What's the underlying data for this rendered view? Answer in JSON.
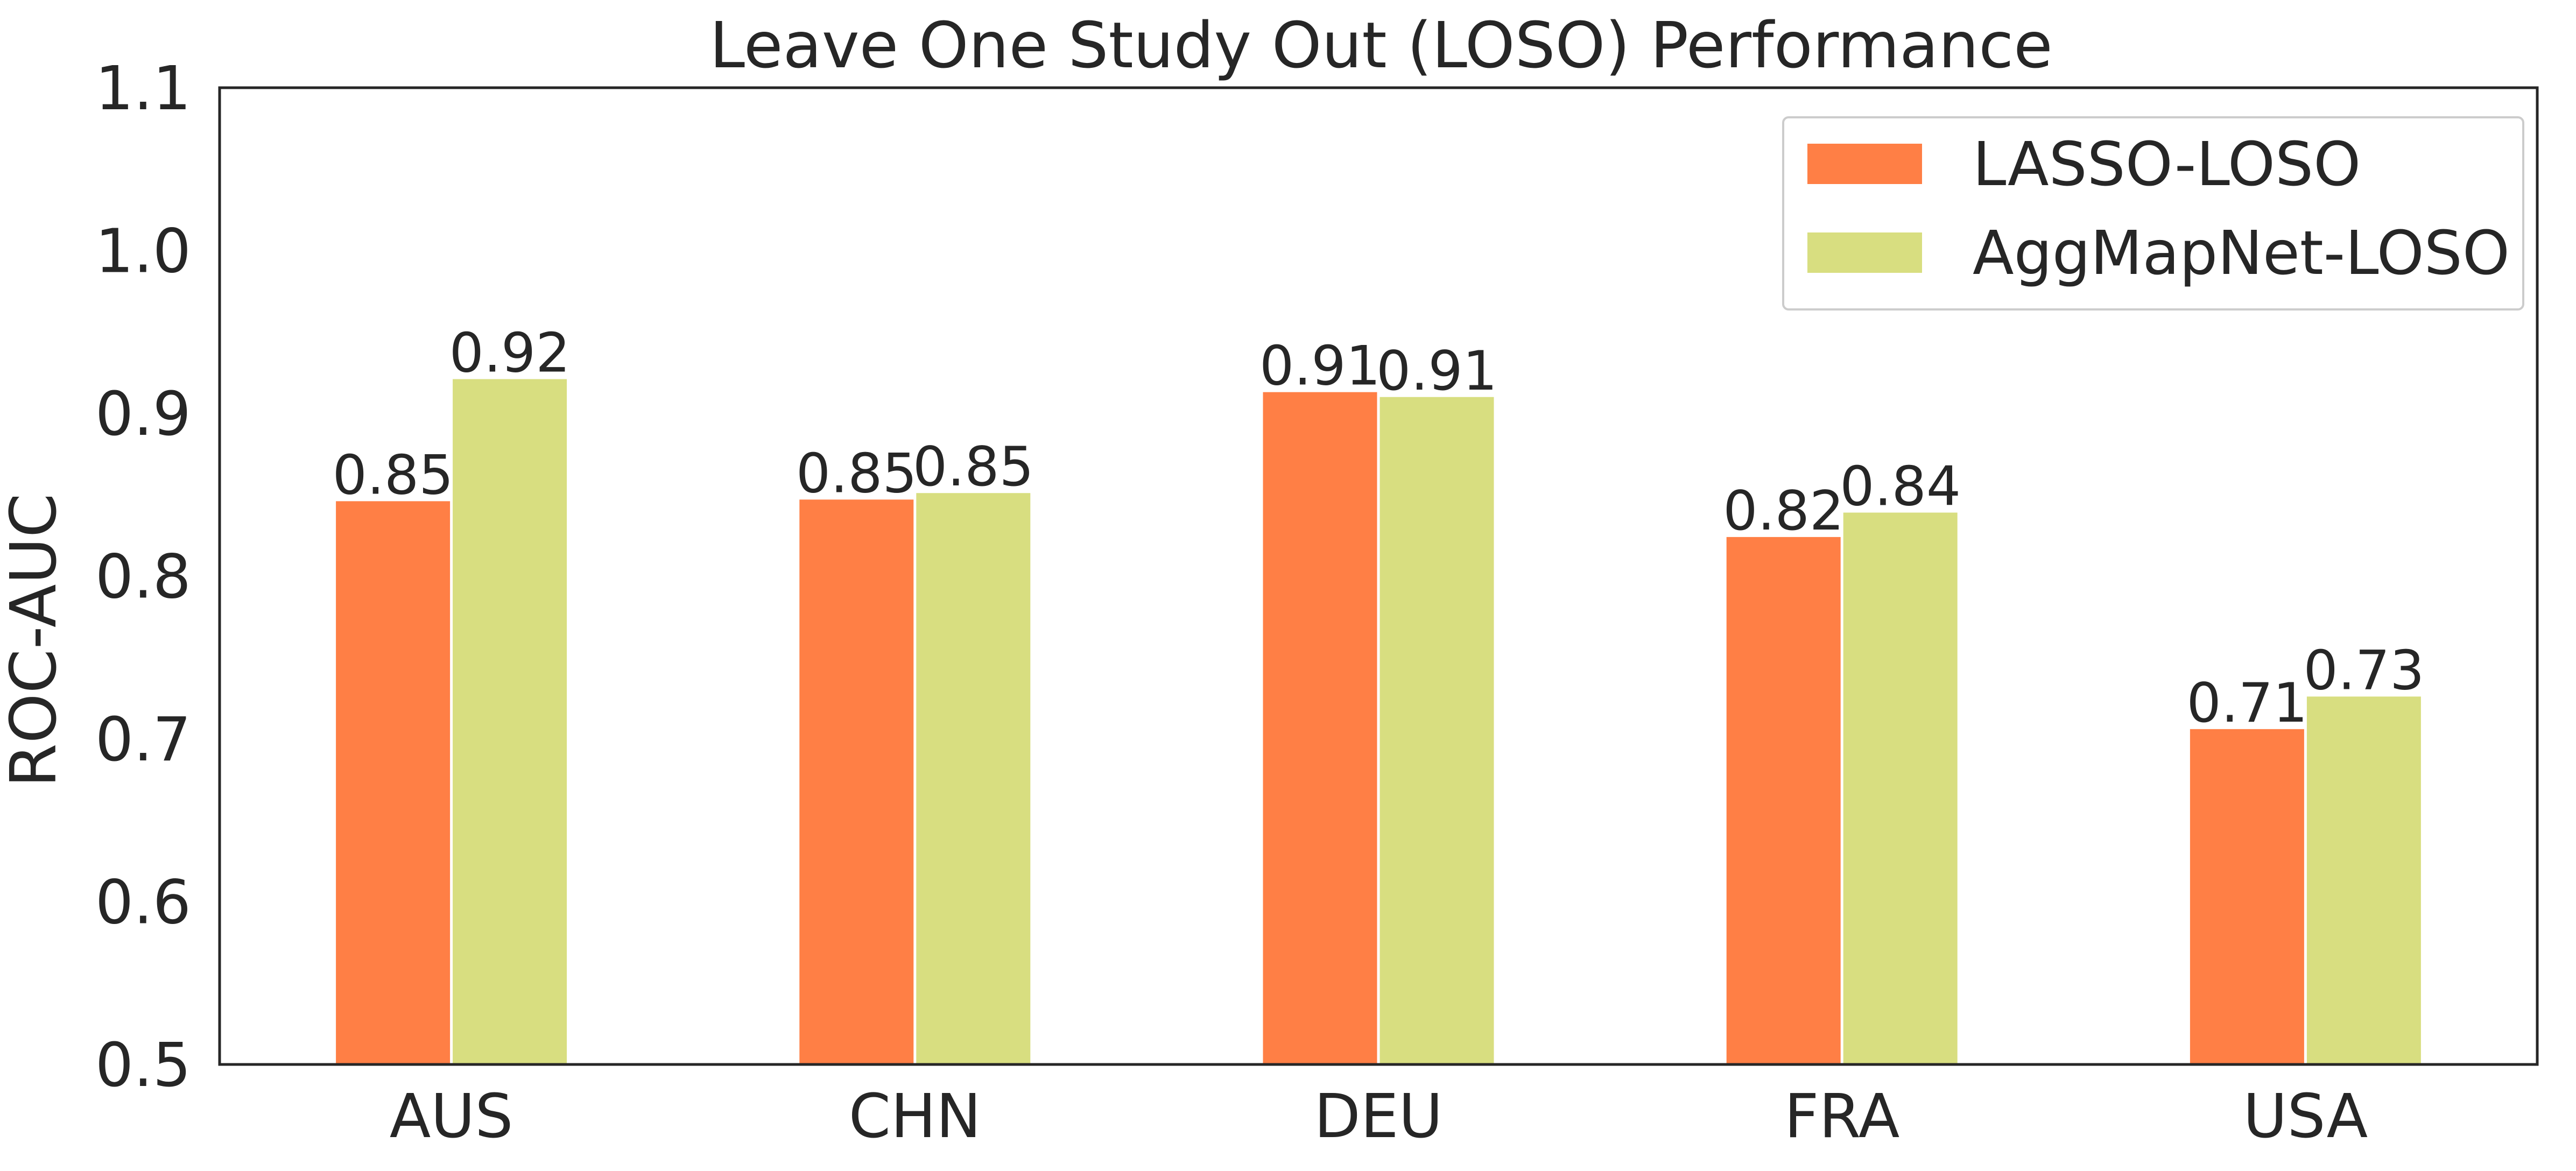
{
  "chart_data": {
    "type": "bar",
    "title": "Leave One Study Out (LOSO) Performance",
    "xlabel": "",
    "ylabel": "ROC-AUC",
    "categories": [
      "AUS",
      "CHN",
      "DEU",
      "FRA",
      "USA"
    ],
    "series": [
      {
        "name": "LASSO-LOSO",
        "color": "#ff7f45",
        "values": [
          0.846,
          0.847,
          0.913,
          0.824,
          0.706
        ],
        "labels": [
          "0.85",
          "0.85",
          "0.91",
          "0.82",
          "0.71"
        ]
      },
      {
        "name": "AggMapNet-LOSO",
        "color": "#d8de80",
        "values": [
          0.921,
          0.851,
          0.91,
          0.839,
          0.726
        ],
        "labels": [
          "0.92",
          "0.85",
          "0.91",
          "0.84",
          "0.73"
        ]
      }
    ],
    "ylim": [
      0.5,
      1.1
    ],
    "yticks": [
      "0.5",
      "0.6",
      "0.7",
      "0.8",
      "0.9",
      "1.0",
      "1.1"
    ],
    "grid": false,
    "legend": "top-right"
  }
}
